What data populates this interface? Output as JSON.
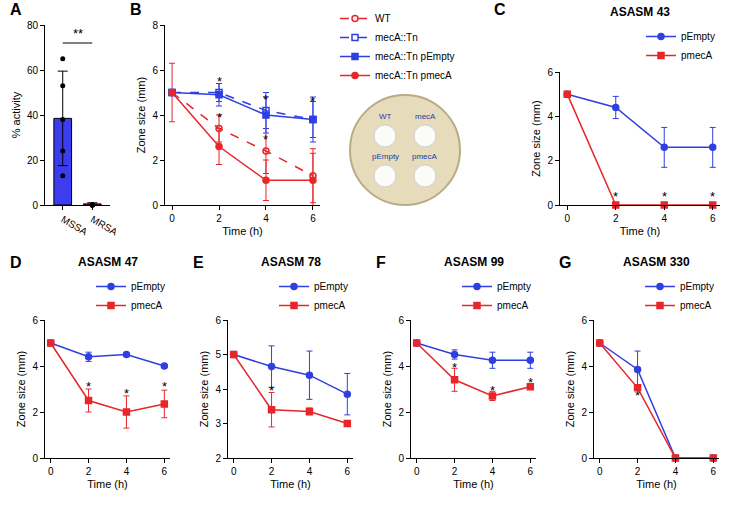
{
  "chart_data": [
    {
      "type": "bar",
      "panel_label": "A",
      "y_label": "% activity",
      "categories": [
        "MSSA",
        "MRSA"
      ],
      "values": [
        38.5,
        0.5
      ],
      "errors": [
        21,
        0.5
      ],
      "colors": [
        "#3d3df0",
        "#f03030"
      ],
      "points": [
        [
          65,
          53,
          38,
          24,
          13
        ],
        [
          0,
          0,
          0,
          0,
          0
        ]
      ],
      "ylim": [
        0,
        80
      ],
      "yticks": [
        0,
        20,
        40,
        60,
        80
      ],
      "annotations": [
        {
          "text": "**",
          "between": [
            "MSSA",
            "MRSA"
          ],
          "y": 72
        }
      ]
    },
    {
      "type": "line",
      "panel_label": "B",
      "x_label": "Time (h)",
      "y_label": "Zone size (mm)",
      "x": [
        0,
        2,
        4,
        6
      ],
      "xlim": [
        -0.3,
        6.3
      ],
      "xticks": [
        0,
        2,
        4,
        6
      ],
      "ylim": [
        0,
        8
      ],
      "yticks": [
        0,
        2,
        4,
        6,
        8
      ],
      "legend": "right",
      "series": [
        {
          "name": "WT",
          "color": "#e8262a",
          "marker": "open circle",
          "line_style": "dashed",
          "values": [
            5,
            3.4,
            2.4,
            1.3
          ],
          "errors": [
            1.3,
            0.6,
            1.0,
            1.2
          ]
        },
        {
          "name": "mecA::Tn",
          "color": "#2f3fe0",
          "marker": "open square",
          "line_style": "dashed",
          "values": [
            5,
            5.0,
            4.2,
            3.8
          ],
          "errors": [
            0,
            0.4,
            0.8,
            1.0
          ]
        },
        {
          "name": "mecA::Tn pEmpty",
          "color": "#2f3fe0",
          "marker": "square",
          "line_style": "solid",
          "values": [
            5,
            4.9,
            4.0,
            3.8
          ],
          "errors": [
            0,
            0.5,
            0.8,
            0.8
          ]
        },
        {
          "name": "mecA::Tn pmecA",
          "color": "#e8262a",
          "marker": "circle",
          "line_style": "solid",
          "values": [
            5,
            2.6,
            1.1,
            1.1
          ],
          "errors": [
            0,
            0.8,
            0.9,
            1.2
          ]
        }
      ],
      "annotations": [
        {
          "text": "*",
          "x": 2,
          "y": 5.5
        },
        {
          "text": "*",
          "x": 2,
          "y": 3.9
        },
        {
          "text": "*",
          "x": 4,
          "y": 4.7
        },
        {
          "text": "*",
          "x": 4,
          "y": 2.9
        },
        {
          "text": "*",
          "x": 6,
          "y": 4.6
        }
      ]
    },
    {
      "type": "line",
      "panel_label": "C",
      "title": "ASASM 43",
      "x_label": "Time (h)",
      "y_label": "Zone size (mm)",
      "x": [
        0,
        2,
        4,
        6
      ],
      "xlim": [
        -0.3,
        6.3
      ],
      "xticks": [
        0,
        2,
        4,
        6
      ],
      "ylim": [
        0,
        6
      ],
      "yticks": [
        0,
        2,
        4,
        6
      ],
      "legend": "top right",
      "series": [
        {
          "name": "pEmpty",
          "color": "#2f3fe0",
          "marker": "circle",
          "line_style": "solid",
          "values": [
            5,
            4.4,
            2.6,
            2.6
          ],
          "errors": [
            0,
            0.5,
            0.9,
            0.9
          ]
        },
        {
          "name": "pmecA",
          "color": "#e8262a",
          "marker": "square",
          "line_style": "solid",
          "values": [
            5,
            0,
            0,
            0
          ],
          "errors": [
            0,
            0,
            0,
            0
          ]
        }
      ],
      "annotations": [
        {
          "text": "*",
          "x": 2,
          "y": 0.4
        },
        {
          "text": "*",
          "x": 4,
          "y": 0.4
        },
        {
          "text": "*",
          "x": 6,
          "y": 0.4
        }
      ]
    },
    {
      "type": "line",
      "panel_label": "D",
      "title": "ASASM 47",
      "x_label": "Time (h)",
      "y_label": "Zone size (mm)",
      "x": [
        0,
        2,
        4,
        6
      ],
      "xlim": [
        -0.3,
        6.3
      ],
      "xticks": [
        0,
        2,
        4,
        6
      ],
      "ylim": [
        0,
        6
      ],
      "yticks": [
        0,
        2,
        4,
        6
      ],
      "legend": "top right",
      "series": [
        {
          "name": "pEmpty",
          "color": "#2f3fe0",
          "marker": "circle",
          "line_style": "solid",
          "values": [
            5,
            4.4,
            4.5,
            4.0
          ],
          "errors": [
            0,
            0.2,
            0.05,
            0.05
          ]
        },
        {
          "name": "pmecA",
          "color": "#e8262a",
          "marker": "square",
          "line_style": "solid",
          "values": [
            5,
            2.5,
            2.0,
            2.35
          ],
          "errors": [
            0,
            0.5,
            0.7,
            0.6
          ]
        }
      ],
      "annotations": [
        {
          "text": "*",
          "x": 2,
          "y": 3.1
        },
        {
          "text": "*",
          "x": 4,
          "y": 2.8
        },
        {
          "text": "*",
          "x": 6,
          "y": 3.1
        }
      ]
    },
    {
      "type": "line",
      "panel_label": "E",
      "title": "ASASM 78",
      "x_label": "Time (h)",
      "y_label": "Zone size (mm)",
      "x": [
        0,
        2,
        4,
        6
      ],
      "xlim": [
        -0.3,
        6.3
      ],
      "xticks": [
        0,
        2,
        4,
        6
      ],
      "ylim": [
        2,
        6
      ],
      "yticks": [
        2,
        3,
        4,
        5,
        6
      ],
      "legend": "top right",
      "series": [
        {
          "name": "pEmpty",
          "color": "#2f3fe0",
          "marker": "circle",
          "line_style": "solid",
          "values": [
            5,
            4.65,
            4.4,
            3.85
          ],
          "errors": [
            0,
            0.6,
            0.7,
            0.6
          ]
        },
        {
          "name": "pmecA",
          "color": "#e8262a",
          "marker": "square",
          "line_style": "solid",
          "values": [
            5,
            3.4,
            3.35,
            3.0
          ],
          "errors": [
            0,
            0.5,
            0.1,
            0.02
          ]
        }
      ],
      "annotations": [
        {
          "text": "*",
          "x": 2,
          "y": 3.95
        }
      ]
    },
    {
      "type": "line",
      "panel_label": "F",
      "title": "ASASM 99",
      "x_label": "Time (h)",
      "y_label": "Zone size (mm)",
      "x": [
        0,
        2,
        4,
        6
      ],
      "xlim": [
        -0.3,
        6.3
      ],
      "xticks": [
        0,
        2,
        4,
        6
      ],
      "ylim": [
        0,
        6
      ],
      "yticks": [
        0,
        2,
        4,
        6
      ],
      "legend": "top right",
      "series": [
        {
          "name": "pEmpty",
          "color": "#2f3fe0",
          "marker": "circle",
          "line_style": "solid",
          "values": [
            5,
            4.5,
            4.25,
            4.25
          ],
          "errors": [
            0,
            0.2,
            0.35,
            0.35
          ]
        },
        {
          "name": "pmecA",
          "color": "#e8262a",
          "marker": "square",
          "line_style": "solid",
          "values": [
            5,
            3.4,
            2.7,
            3.1
          ],
          "errors": [
            0,
            0.5,
            0.2,
            0.1
          ]
        }
      ],
      "annotations": [
        {
          "text": "*",
          "x": 2,
          "y": 3.95
        },
        {
          "text": "*",
          "x": 4,
          "y": 2.95
        },
        {
          "text": "*",
          "x": 6,
          "y": 3.3
        }
      ]
    },
    {
      "type": "line",
      "panel_label": "G",
      "title": "ASASM 330",
      "x_label": "Time (h)",
      "y_label": "Zone size (mm)",
      "x": [
        0,
        2,
        4,
        6
      ],
      "xlim": [
        -0.3,
        6.3
      ],
      "xticks": [
        0,
        2,
        4,
        6
      ],
      "ylim": [
        0,
        6
      ],
      "yticks": [
        0,
        2,
        4,
        6
      ],
      "legend": "top right",
      "series": [
        {
          "name": "pEmpty",
          "color": "#2f3fe0",
          "marker": "circle",
          "line_style": "solid",
          "values": [
            5,
            3.85,
            0,
            0
          ],
          "errors": [
            0,
            0.8,
            0,
            0
          ]
        },
        {
          "name": "pmecA",
          "color": "#e8262a",
          "marker": "square",
          "line_style": "solid",
          "values": [
            5,
            3.05,
            0,
            0
          ],
          "errors": [
            0,
            0.1,
            0,
            0
          ]
        }
      ],
      "annotations": [
        {
          "text": "*",
          "x": 2,
          "y": 2.7
        }
      ]
    }
  ],
  "plate_photo": {
    "labels": [
      "WT",
      "mecA",
      "pEmpty",
      "pmecA"
    ]
  }
}
